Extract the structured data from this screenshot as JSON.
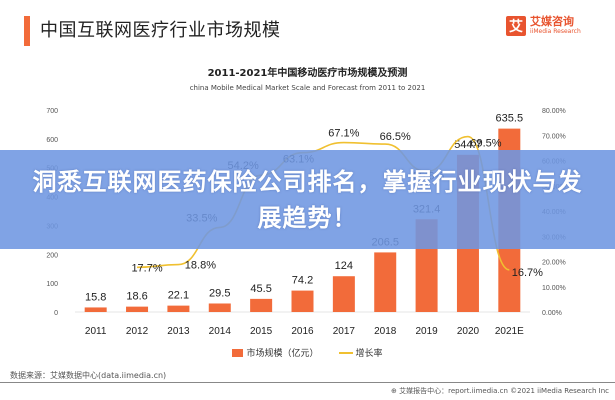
{
  "header": {
    "title": "中国互联网医疗行业市场规模",
    "logo_mark": "艾",
    "logo_cn": "艾媒咨询",
    "logo_en": "iiMedia Research"
  },
  "banner": {
    "text": "洞悉互联网医药保险公司排名，掌握行业现状与发展趋势！"
  },
  "colors": {
    "accent": "#f26b3a",
    "bar": "#f26b3a",
    "line": "#f0c030",
    "banner": "#6e96e1"
  },
  "chart_data": {
    "type": "bar",
    "title": "2011-2021年中国移动医疗市场规模及预测",
    "subtitle": "china Mobile Medical Market Scale and Forecast from 2011 to 2021",
    "categories": [
      "2011",
      "2012",
      "2013",
      "2014",
      "2015",
      "2016",
      "2017",
      "2018",
      "2019",
      "2020",
      "2021E"
    ],
    "series": [
      {
        "name": "市场规模（亿元）",
        "type": "bar",
        "axis": "left",
        "values": [
          15.8,
          18.6,
          22.1,
          29.5,
          45.5,
          74.2,
          124,
          206.5,
          321.4,
          544.7,
          635.5
        ],
        "labels": [
          "15.8",
          "18.6",
          "22.1",
          "29.5",
          "45.5",
          "74.2",
          "124",
          "206.5",
          "321.4",
          "544.7",
          "635.5"
        ]
      },
      {
        "name": "增长率",
        "type": "line",
        "axis": "right",
        "values": [
          null,
          17.7,
          18.8,
          33.5,
          54.2,
          63.1,
          67.1,
          66.5,
          55.6,
          69.5,
          16.7
        ],
        "labels": [
          "",
          "17.7%",
          "18.8%",
          "33.5%",
          "54.2%",
          "63.1%",
          "67.1%",
          "66.5%",
          "55.6%",
          "69.5%",
          "16.7%"
        ]
      }
    ],
    "left_axis": {
      "ylim": [
        0,
        700
      ],
      "ticks": [
        "0",
        "100",
        "200",
        "300",
        "400",
        "500",
        "600",
        "700"
      ]
    },
    "right_axis": {
      "ylim": [
        0,
        80
      ],
      "ticks": [
        "0.00%",
        "10.00%",
        "20.00%",
        "30.00%",
        "40.00%",
        "50.00%",
        "60.00%",
        "70.00%",
        "80.00%"
      ]
    },
    "legend": [
      "市场规模（亿元）",
      "增长率"
    ],
    "legend_position": "bottom",
    "grid": false
  },
  "footer": {
    "source": "数据来源：艾媒数据中心(data.iimedia.cn)",
    "copyright": "艾媒报告中心：report.iimedia.cn  ©2021  iiMedia Research Inc"
  }
}
